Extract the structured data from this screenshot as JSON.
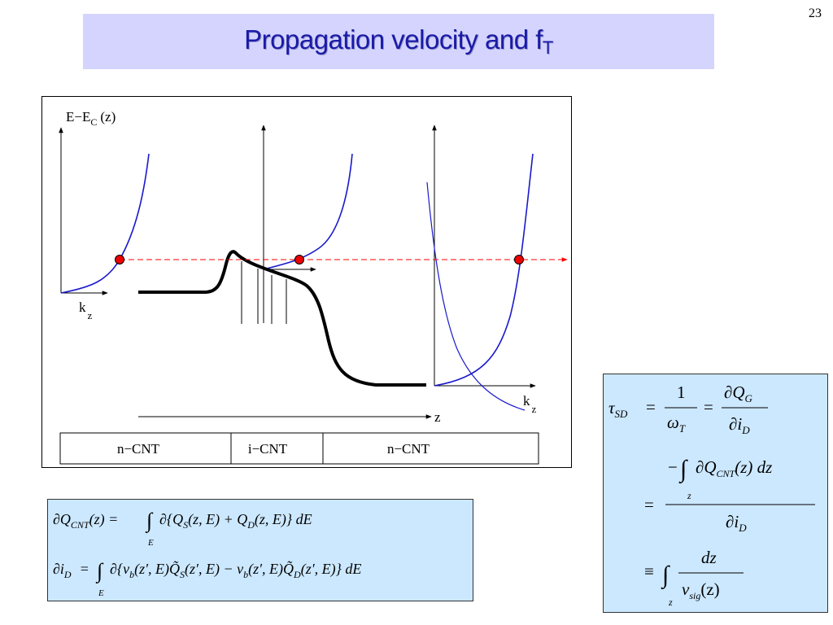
{
  "slide": {
    "number": "23",
    "title_main": "Propagation velocity and f",
    "title_sub": "T"
  },
  "diagram": {
    "y_axis_label_main": "E−E",
    "y_axis_label_sub": "C",
    "y_axis_label_tail": "(z)",
    "kz_left_main": "k",
    "kz_left_sub": "z",
    "kz_right_main": "k",
    "kz_right_sub": "z",
    "z_axis_label": "z",
    "regions": [
      "n−CNT",
      "i−CNT",
      "n−CNT"
    ]
  },
  "colors": {
    "title_bg": "#d4d4ff",
    "title_text": "#1a1aa8",
    "equation_bg": "#cce8ff",
    "band_curve": "#1a1acc",
    "energy_line": "#ff0000",
    "state_dot": "#ee0000"
  },
  "equations": {
    "charge": {
      "line1": {
        "lhs": "∂Q",
        "lhs_sub": "CNT",
        "lhs_arg": "(z) =",
        "integral": "∫",
        "int_sub": "E",
        "body_a": "∂{Q",
        "body_a_sub": "S",
        "body_b": "(z, E) + Q",
        "body_b_sub": "D",
        "body_c": "(z, E)} dE"
      },
      "line2": {
        "lhs": "∂i",
        "lhs_sub": "D",
        "lhs_eq": "=",
        "integral": "∫",
        "int_sub": "E",
        "body_a": "∂{v",
        "body_a_sub": "b",
        "body_b": "(z′, E)Q̃",
        "body_b_sub": "S",
        "body_c": "(z′, E) − v",
        "body_c_sub": "b",
        "body_d": "(z′, E)Q̃",
        "body_d_sub": "D",
        "body_e": "(z′, E)} dE"
      }
    },
    "tau": {
      "tau": "τ",
      "tau_sub": "SD",
      "eq1": "=",
      "frac1_num": "1",
      "frac1_den": "ω",
      "frac1_den_sub": "T",
      "eq2": "=",
      "frac2_num": "∂Q",
      "frac2_num_sub": "G",
      "frac2_den": "∂i",
      "frac2_den_sub": "D",
      "line2_num_minus": "−",
      "line2_integral": "∫",
      "line2_num": "∂Q",
      "line2_num_sub": "CNT",
      "line2_num_tail": "(z) dz",
      "line2_int_sub": "z",
      "line2_eq": "=",
      "line2_den": "∂i",
      "line2_den_sub": "D",
      "line3_equiv": "≡",
      "line3_integral": "∫",
      "line3_int_sub": "z",
      "line3_num": "dz",
      "line3_den": "v",
      "line3_den_sub": "sig",
      "line3_den_tail": "(z)"
    }
  }
}
